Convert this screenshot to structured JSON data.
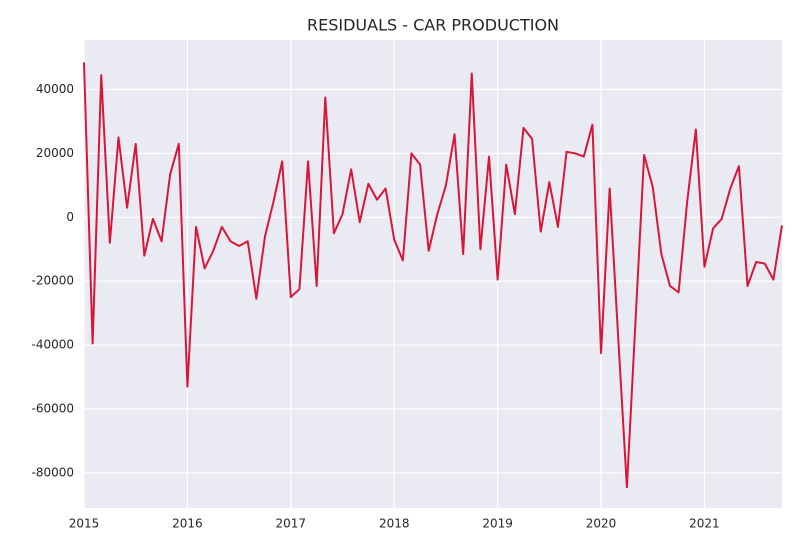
{
  "chart_data": {
    "type": "line",
    "title": "RESIDUALS - CAR PRODUCTION",
    "x": [
      "2015-01",
      "2015-02",
      "2015-03",
      "2015-04",
      "2015-05",
      "2015-06",
      "2015-07",
      "2015-08",
      "2015-09",
      "2015-10",
      "2015-11",
      "2015-12",
      "2016-01",
      "2016-02",
      "2016-03",
      "2016-04",
      "2016-05",
      "2016-06",
      "2016-07",
      "2016-08",
      "2016-09",
      "2016-10",
      "2016-11",
      "2016-12",
      "2017-01",
      "2017-02",
      "2017-03",
      "2017-04",
      "2017-05",
      "2017-06",
      "2017-07",
      "2017-08",
      "2017-09",
      "2017-10",
      "2017-11",
      "2017-12",
      "2018-01",
      "2018-02",
      "2018-03",
      "2018-04",
      "2018-05",
      "2018-06",
      "2018-07",
      "2018-08",
      "2018-09",
      "2018-10",
      "2018-11",
      "2018-12",
      "2019-01",
      "2019-02",
      "2019-03",
      "2019-04",
      "2019-05",
      "2019-06",
      "2019-07",
      "2019-08",
      "2019-09",
      "2019-10",
      "2019-11",
      "2019-12",
      "2020-01",
      "2020-02",
      "2020-03",
      "2020-04",
      "2020-05",
      "2020-06",
      "2020-07",
      "2020-08",
      "2020-09",
      "2020-10",
      "2020-11",
      "2020-12",
      "2021-01",
      "2021-02",
      "2021-03",
      "2021-04",
      "2021-05",
      "2021-06",
      "2021-07",
      "2021-08",
      "2021-09",
      "2021-10"
    ],
    "series": [
      {
        "name": "residuals",
        "color": "#d7173a",
        "values": [
          48500,
          -39500,
          44500,
          -8000,
          25000,
          3000,
          23000,
          -12000,
          -500,
          -7500,
          13500,
          23000,
          -53000,
          -3000,
          -16000,
          -10500,
          -3000,
          -7500,
          -9000,
          -7500,
          -25500,
          -6000,
          5000,
          17500,
          -25000,
          -22500,
          17500,
          -21500,
          37500,
          -5000,
          1000,
          15000,
          -1500,
          10500,
          5500,
          9000,
          -7000,
          -13500,
          20000,
          16500,
          -10500,
          1000,
          10000,
          26000,
          -11500,
          45000,
          -10000,
          19000,
          -19500,
          16500,
          1000,
          28000,
          24500,
          -4500,
          11000,
          -3000,
          20500,
          20000,
          19000,
          29000,
          -42500,
          9000,
          -38000,
          -84500,
          -32500,
          19500,
          9500,
          -11500,
          -21500,
          -23500,
          5000,
          27500,
          -15500,
          -3500,
          -500,
          9000,
          16000,
          -21500,
          -14000,
          -14500,
          -19500,
          -2500
        ]
      }
    ],
    "xlim": [
      "2015-01",
      "2021-10"
    ],
    "xticks": [
      "2015",
      "2016",
      "2017",
      "2018",
      "2019",
      "2020",
      "2021"
    ],
    "ylim": [
      -91000,
      55500
    ],
    "yticks": [
      -80000,
      -60000,
      -40000,
      -20000,
      0,
      20000,
      40000
    ],
    "grid": true
  }
}
